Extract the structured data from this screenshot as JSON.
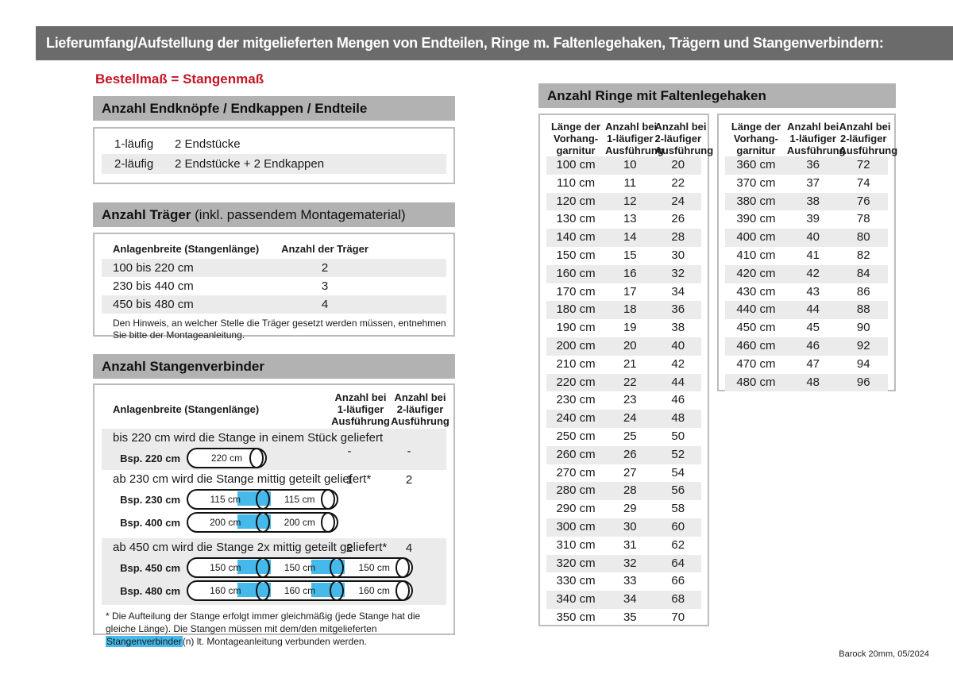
{
  "banner": {
    "title": "Lieferumfang/Aufstellung der mitgelieferten Mengen von Endteilen, Ringe m. Faltenlegehaken, Trägern und Stangenverbindern:"
  },
  "subtitle": "Bestellmaß = Stangenmaß",
  "colors": {
    "banner_bg": "#6b6b6b",
    "section_bar_bg": "#b2b2b2",
    "row_stripe": "#ebebeb",
    "accent_red": "#c41425",
    "connector_blue": "#45b9e9"
  },
  "endteile": {
    "title": "Anzahl Endknöpfe / Endkappen / Endteile",
    "rows": [
      {
        "label": "1-läufig",
        "value": "2 Endstücke"
      },
      {
        "label": "2-läufig",
        "value": "2 Endstücke + 2 Endkappen"
      }
    ]
  },
  "traeger": {
    "title_bold": "Anzahl Träger",
    "title_rest": " (inkl. passendem Montagematerial)",
    "col1": "Anlagenbreite (Stangenlänge)",
    "col2": "Anzahl der Träger",
    "rows": [
      {
        "range": "100 bis 220 cm",
        "count": "2"
      },
      {
        "range": "230 bis 440 cm",
        "count": "3"
      },
      {
        "range": "450 bis 480 cm",
        "count": "4"
      }
    ],
    "note": "Den Hinweis, an welcher Stelle die Träger gesetzt werden müssen, entnehmen Sie bitte der Montageanleitung."
  },
  "verbinder": {
    "title": "Anzahl Stangenverbinder",
    "col1": "Anlagenbreite (Stangenlänge)",
    "col2_lines": [
      "Anzahl bei",
      "1-läufiger",
      "Ausführung"
    ],
    "col3_lines": [
      "Anzahl bei",
      "2-läufiger",
      "Ausführung"
    ],
    "groups": [
      {
        "text": "bis 220 cm wird die Stange in einem Stück geliefert",
        "v1": "-",
        "v2": "-",
        "rods": [
          {
            "label": "Bsp. 220 cm",
            "segments": [
              "220 cm"
            ]
          }
        ]
      },
      {
        "text": "ab 230 cm wird die Stange mittig geteilt geliefert*",
        "v1": "1",
        "v2": "2",
        "rods": [
          {
            "label": "Bsp. 230 cm",
            "segments": [
              "115 cm",
              "115 cm"
            ]
          },
          {
            "label": "Bsp. 400 cm",
            "segments": [
              "200 cm",
              "200 cm"
            ]
          }
        ]
      },
      {
        "text": "ab 450 cm wird die Stange 2x mittig geteilt geliefert*",
        "v1": "2",
        "v2": "4",
        "rods": [
          {
            "label": "Bsp. 450 cm",
            "segments": [
              "150 cm",
              "150 cm",
              "150 cm"
            ]
          },
          {
            "label": "Bsp. 480 cm",
            "segments": [
              "160 cm",
              "160 cm",
              "160 cm"
            ]
          }
        ]
      }
    ],
    "footnote_pre": "* Die Aufteilung der Stange erfolgt immer gleichmäßig (jede Stange hat die gleiche Länge). Die Stangen müssen mit dem/den mitgelieferten ",
    "footnote_highlight": "Stangenverbinder",
    "footnote_post": "(n) lt. Montageanleitung verbunden werden."
  },
  "ringe": {
    "title": "Anzahl Ringe mit Faltenlegehaken",
    "col_headers": [
      [
        "Länge der",
        "Vorhang-",
        "garnitur"
      ],
      [
        "Anzahl bei",
        "1-läufiger",
        "Ausführung"
      ],
      [
        "Anzahl bei",
        "2-läufiger",
        "Ausführung"
      ]
    ],
    "table1": [
      [
        "100 cm",
        "10",
        "20"
      ],
      [
        "110 cm",
        "11",
        "22"
      ],
      [
        "120 cm",
        "12",
        "24"
      ],
      [
        "130 cm",
        "13",
        "26"
      ],
      [
        "140 cm",
        "14",
        "28"
      ],
      [
        "150 cm",
        "15",
        "30"
      ],
      [
        "160 cm",
        "16",
        "32"
      ],
      [
        "170 cm",
        "17",
        "34"
      ],
      [
        "180 cm",
        "18",
        "36"
      ],
      [
        "190 cm",
        "19",
        "38"
      ],
      [
        "200 cm",
        "20",
        "40"
      ],
      [
        "210 cm",
        "21",
        "42"
      ],
      [
        "220 cm",
        "22",
        "44"
      ],
      [
        "230 cm",
        "23",
        "46"
      ],
      [
        "240 cm",
        "24",
        "48"
      ],
      [
        "250 cm",
        "25",
        "50"
      ],
      [
        "260 cm",
        "26",
        "52"
      ],
      [
        "270 cm",
        "27",
        "54"
      ],
      [
        "280 cm",
        "28",
        "56"
      ],
      [
        "290 cm",
        "29",
        "58"
      ],
      [
        "300 cm",
        "30",
        "60"
      ],
      [
        "310 cm",
        "31",
        "62"
      ],
      [
        "320 cm",
        "32",
        "64"
      ],
      [
        "330 cm",
        "33",
        "66"
      ],
      [
        "340 cm",
        "34",
        "68"
      ],
      [
        "350 cm",
        "35",
        "70"
      ]
    ],
    "table2": [
      [
        "360 cm",
        "36",
        "72"
      ],
      [
        "370 cm",
        "37",
        "74"
      ],
      [
        "380 cm",
        "38",
        "76"
      ],
      [
        "390 cm",
        "39",
        "78"
      ],
      [
        "400 cm",
        "40",
        "80"
      ],
      [
        "410 cm",
        "41",
        "82"
      ],
      [
        "420 cm",
        "42",
        "84"
      ],
      [
        "430 cm",
        "43",
        "86"
      ],
      [
        "440 cm",
        "44",
        "88"
      ],
      [
        "450 cm",
        "45",
        "90"
      ],
      [
        "460 cm",
        "46",
        "92"
      ],
      [
        "470 cm",
        "47",
        "94"
      ],
      [
        "480 cm",
        "48",
        "96"
      ]
    ]
  },
  "footer": "Barock 20mm, 05/2024"
}
